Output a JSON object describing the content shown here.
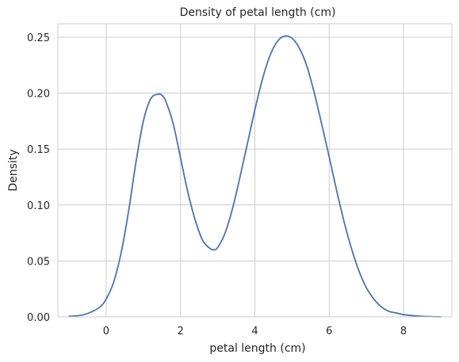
{
  "chart_data": {
    "type": "line",
    "title": "Density of petal length (cm)",
    "xlabel": "petal length (cm)",
    "ylabel": "Density",
    "xlim": [
      -1.3,
      9.3
    ],
    "ylim": [
      0,
      0.262
    ],
    "xticks": [
      0,
      2,
      4,
      6,
      8
    ],
    "xtick_labels": [
      "0",
      "2",
      "4",
      "6",
      "8"
    ],
    "yticks": [
      0,
      0.05,
      0.1,
      0.15,
      0.2,
      0.25
    ],
    "ytick_labels": [
      "0.00",
      "0.05",
      "0.10",
      "0.15",
      "0.20",
      "0.25"
    ],
    "grid": true,
    "line_color": "#4c72b0",
    "series": [
      {
        "x": [
          -1.0,
          -0.6,
          -0.2,
          0.0,
          0.2,
          0.4,
          0.6,
          0.8,
          1.0,
          1.2,
          1.4,
          1.5,
          1.6,
          1.8,
          2.0,
          2.2,
          2.4,
          2.6,
          2.8,
          2.9,
          3.0,
          3.2,
          3.4,
          3.6,
          3.8,
          4.0,
          4.2,
          4.4,
          4.6,
          4.8,
          5.0,
          5.2,
          5.4,
          5.6,
          5.8,
          6.0,
          6.2,
          6.4,
          6.6,
          6.8,
          7.0,
          7.2,
          7.4,
          7.6,
          7.8,
          8.0,
          8.4,
          8.8,
          9.0
        ],
        "y": [
          0.0005,
          0.002,
          0.008,
          0.016,
          0.031,
          0.057,
          0.094,
          0.138,
          0.175,
          0.195,
          0.199,
          0.198,
          0.193,
          0.173,
          0.142,
          0.111,
          0.086,
          0.068,
          0.061,
          0.06,
          0.062,
          0.075,
          0.097,
          0.125,
          0.155,
          0.185,
          0.212,
          0.233,
          0.246,
          0.251,
          0.249,
          0.24,
          0.224,
          0.2,
          0.172,
          0.143,
          0.113,
          0.085,
          0.061,
          0.041,
          0.026,
          0.016,
          0.009,
          0.005,
          0.0035,
          0.002,
          0.0007,
          0.0002,
          0.0001
        ]
      }
    ]
  }
}
